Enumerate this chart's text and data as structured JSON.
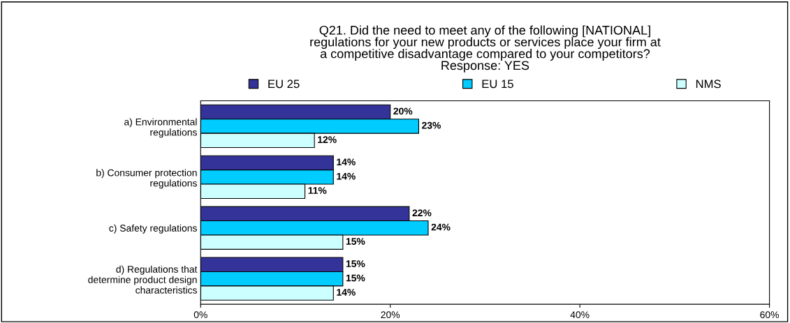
{
  "chart_data": {
    "type": "bar",
    "orientation": "horizontal",
    "title": "Q21. Did the need to meet any of the following [NATIONAL]\nregulations for your new products or services place your firm at\na competitive disadvantage compared to your competitors?\nResponse: YES",
    "categories": [
      "a) Environmental\nregulations",
      "b) Consumer protection\nregulations",
      "c) Safety regulations",
      "d) Regulations that\ndetermine product design\ncharacteristics"
    ],
    "series": [
      {
        "name": "EU 25",
        "color": "#333399",
        "values": [
          20,
          14,
          22,
          15
        ],
        "value_labels": [
          "20%",
          "14%",
          "22%",
          "15%"
        ]
      },
      {
        "name": "EU 15",
        "color": "#00ccff",
        "values": [
          23,
          14,
          24,
          15
        ],
        "value_labels": [
          "23%",
          "14%",
          "24%",
          "15%"
        ]
      },
      {
        "name": "NMS",
        "color": "#ccffff",
        "values": [
          12,
          11,
          15,
          14
        ],
        "value_labels": [
          "12%",
          "11%",
          "15%",
          "14%"
        ]
      }
    ],
    "xlim": [
      0,
      60
    ],
    "xticks": [
      {
        "value": 0,
        "label": "0%"
      },
      {
        "value": 20,
        "label": "20%"
      },
      {
        "value": 40,
        "label": "40%"
      },
      {
        "value": 60,
        "label": "60%"
      }
    ],
    "legend": "top",
    "grid": false
  }
}
